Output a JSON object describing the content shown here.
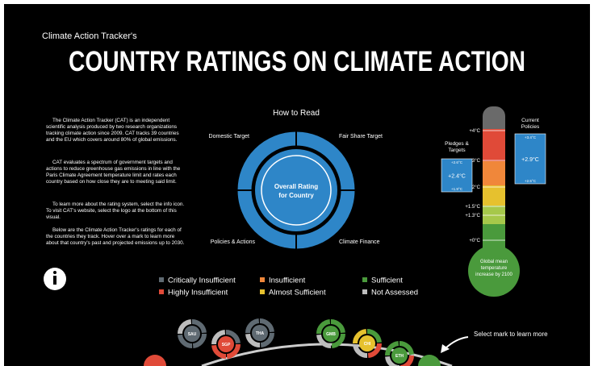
{
  "header": {
    "subtitle": "Climate Action Tracker's",
    "title": "COUNTRY RATINGS ON CLIMATE ACTION"
  },
  "intro": [
    "The Climate Action Tracker (CAT) is an independent scientific analysis produced by two research organizations tracking climate action since 2009. CAT tracks 39 countries and the EU which covers around 80% of global emissions.",
    "CAT evaluates a spectrum of government targets and actions to reduce greenhouse gas emissions in line with the Paris Climate Agreement temperature limit and rates each country based on how close they are to meeting said limit.",
    "To learn more about the rating system, select the info icon. To visit CAT's website, select the logo at the bottom of this visual.",
    "Below are the Climate Action Tracker's ratings for each of the countries they track. Hover over a mark to learn more about that country's past and projected emissions up to 2030."
  ],
  "how_to_read": {
    "title": "How to Read",
    "top_left": "Domestic Target",
    "top_right": "Fair Share Target",
    "bottom_left": "Policies & Actions",
    "bottom_right": "Climate Finance",
    "center": "Overall Rating for Country"
  },
  "thermometer": {
    "scale": [
      "+4°C",
      "+3°C",
      "+2°C",
      "+1.5°C",
      "+1.3°C",
      "+0°C"
    ],
    "bulb": "Global mean temperature increase by 2100",
    "pledges": {
      "label": "Pledges & Targets",
      "value": "+2.4°C",
      "high": "+2.6°C",
      "low": "+1.9°C"
    },
    "current": {
      "label": "Current Policies",
      "value": "+2.9°C",
      "high": "+3.4°C",
      "low": "+2.5°C"
    }
  },
  "legend": [
    {
      "name": "Critically Insufficient",
      "color": "#5f6a72"
    },
    {
      "name": "Insufficient",
      "color": "#f0873a"
    },
    {
      "name": "Sufficient",
      "color": "#4a9a3c"
    },
    {
      "name": "Highly Insufficient",
      "color": "#e04a38"
    },
    {
      "name": "Almost Sufficient",
      "color": "#e6c12e"
    },
    {
      "name": "Not Assessed",
      "color": "#bdbdbd"
    }
  ],
  "hint": "Select mark to learn more",
  "countries": [
    {
      "code": "SAU",
      "center": "#5f6a72",
      "ring": [
        "#5f6a72",
        "#5f6a72",
        "#5f6a72",
        "#bdbdbd"
      ]
    },
    {
      "code": "SGP",
      "center": "#e04a38",
      "ring": [
        "#5f6a72",
        "#e04a38",
        "#e04a38",
        "#bdbdbd"
      ]
    },
    {
      "code": "THA",
      "center": "#5f6a72",
      "ring": [
        "#5f6a72",
        "#5f6a72",
        "#bdbdbd",
        "#5f6a72"
      ]
    },
    {
      "code": "GMB",
      "center": "#4a9a3c",
      "ring": [
        "#4a9a3c",
        "#4a9a3c",
        "#bdbdbd",
        "#4a9a3c"
      ]
    },
    {
      "code": "CHI",
      "center": "#e6c12e",
      "ring": [
        "#4a9a3c",
        "#e04a38",
        "#bdbdbd",
        "#e6c12e"
      ]
    },
    {
      "code": "ETH",
      "center": "#4a9a3c",
      "ring": [
        "#4a9a3c",
        "#e04a38",
        "#bdbdbd",
        "#4a9a3c"
      ]
    }
  ]
}
